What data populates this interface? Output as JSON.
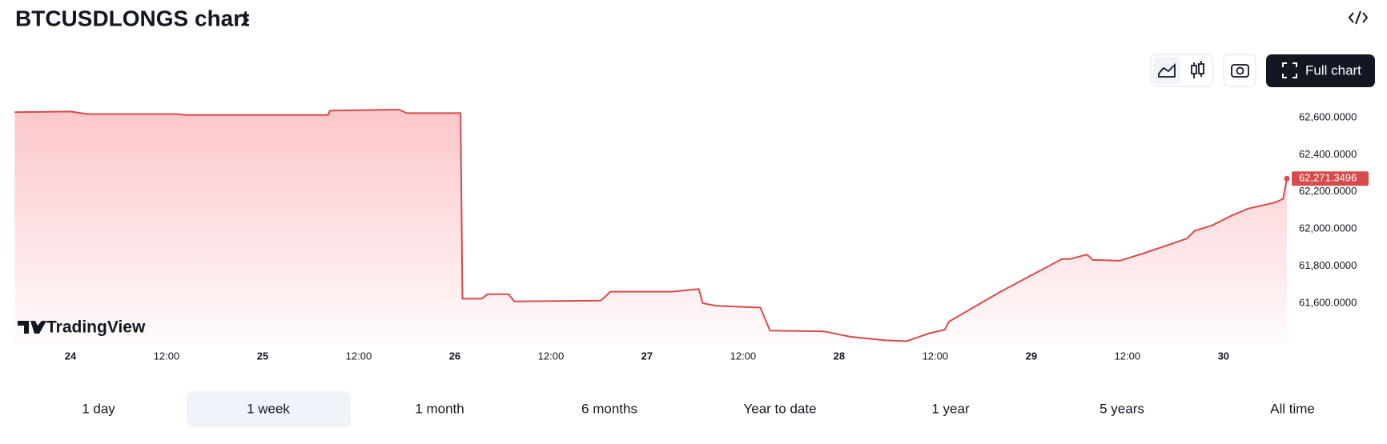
{
  "header": {
    "title": "BTCUSDLONGS chart"
  },
  "toolbar": {
    "full_chart": "Full chart"
  },
  "watermark": "TradingView",
  "ranges": [
    "1 day",
    "1 week",
    "1 month",
    "6 months",
    "Year to date",
    "1 year",
    "5 years",
    "All time"
  ],
  "chart_data": {
    "type": "area",
    "color": "#d64b4b",
    "x": [
      23.71,
      24,
      24.09,
      24.55,
      24.6,
      25.34,
      25.35,
      25.71,
      25.75,
      26.03,
      26.04,
      26.14,
      26.17,
      26.28,
      26.31,
      26.76,
      26.81,
      27.13,
      27.27,
      27.29,
      27.36,
      27.59,
      27.64,
      27.92,
      28.06,
      28.24,
      28.35,
      28.47,
      28.55,
      28.57,
      28.84,
      29.16,
      29.2,
      29.29,
      29.32,
      29.46,
      29.58,
      29.81,
      29.85,
      29.94,
      30.04,
      30.13,
      30.27,
      30.31,
      30.33
    ],
    "values": [
      62629,
      62633,
      62619,
      62619,
      62614,
      62614,
      62638,
      62643,
      62624,
      62624,
      61624,
      61624,
      61648,
      61648,
      61610,
      61614,
      61662,
      61662,
      61676,
      61600,
      61586,
      61576,
      61452,
      61448,
      61419,
      61400,
      61395,
      61438,
      61457,
      61500,
      61662,
      61838,
      61838,
      61862,
      61833,
      61829,
      61867,
      61948,
      61990,
      62019,
      62071,
      62110,
      62143,
      62162,
      62271.3496
    ],
    "price_label": {
      "value": 62271.3496,
      "label": "62,271.3496"
    },
    "xlim": [
      23.71,
      30.33
    ],
    "ylim": [
      61380,
      62710
    ],
    "xticks": [
      24,
      {
        "value": 24.5,
        "label": "12:00"
      },
      25,
      {
        "value": 25.5,
        "label": "12:00"
      },
      26,
      {
        "value": 26.5,
        "label": "12:00"
      },
      27,
      {
        "value": 27.5,
        "label": "12:00"
      },
      28,
      {
        "value": 28.5,
        "label": "12:00"
      },
      29,
      {
        "value": 29.5,
        "label": "12:00"
      },
      30
    ],
    "yticks": [
      {
        "value": 61600,
        "label": "61,600.0000"
      },
      {
        "value": 61800,
        "label": "61,800.0000"
      },
      {
        "value": 62000,
        "label": "62,000.0000"
      },
      {
        "value": 62200,
        "label": "62,200.0000"
      },
      {
        "value": 62400,
        "label": "62,400.0000"
      },
      {
        "value": 62600,
        "label": "62,600.0000"
      }
    ]
  }
}
